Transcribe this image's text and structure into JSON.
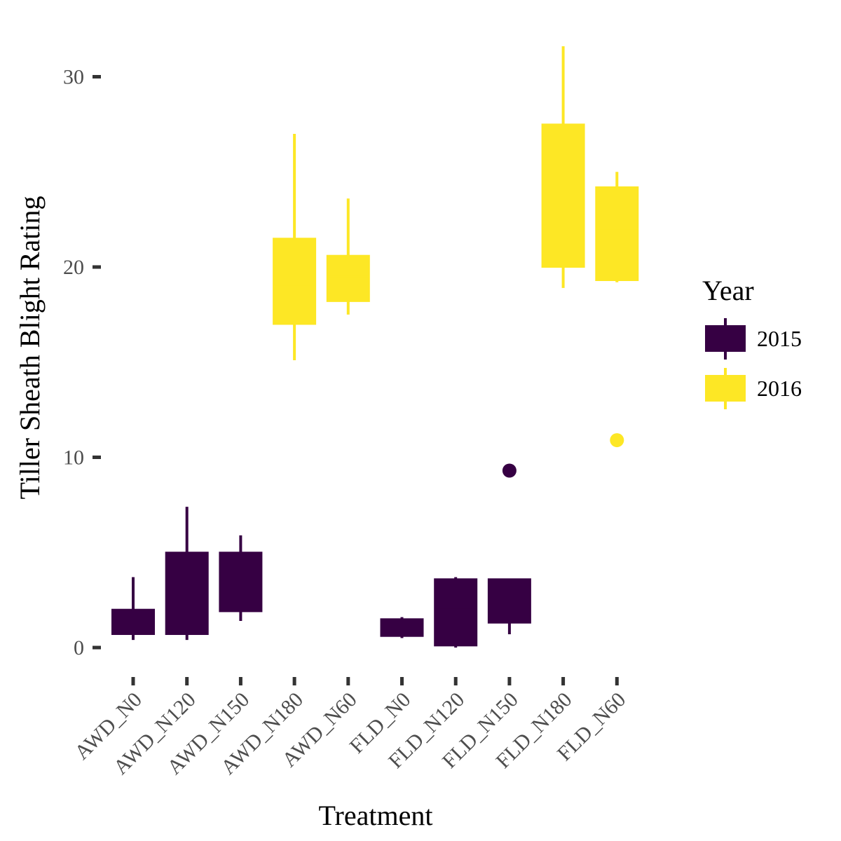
{
  "colors": {
    "2015": "#360043",
    "2016": "#fde725",
    "tick": "#333333"
  },
  "chart_data": {
    "type": "box",
    "xlabel": "Treatment",
    "ylabel": "Tiller Sheath Blight Rating",
    "categories": [
      "AWD_N0",
      "AWD_N120",
      "AWD_N150",
      "AWD_N180",
      "AWD_N60",
      "FLD_N0",
      "FLD_N120",
      "FLD_N150",
      "FLD_N180",
      "FLD_N60"
    ],
    "y_ticks": [
      0,
      10,
      20,
      30
    ],
    "y_tick_labels": [
      "0",
      "10",
      "20",
      "30"
    ],
    "ylim": [
      -1.5,
      32.5
    ],
    "grid": false,
    "legend": {
      "title": "Year",
      "position": "right",
      "entries": [
        "2015",
        "2016"
      ]
    },
    "series": [
      {
        "name": "2015",
        "color": "#360043",
        "boxes": [
          {
            "category": "AWD_N0",
            "lower_whisker": 0.4,
            "q1": 0.7,
            "median": 1.2,
            "q3": 2.0,
            "upper_whisker": 3.7,
            "outliers": []
          },
          {
            "category": "AWD_N120",
            "lower_whisker": 0.4,
            "q1": 0.7,
            "median": 3.0,
            "q3": 5.0,
            "upper_whisker": 7.4,
            "outliers": []
          },
          {
            "category": "AWD_N150",
            "lower_whisker": 1.4,
            "q1": 1.9,
            "median": 4.0,
            "q3": 5.0,
            "upper_whisker": 5.9,
            "outliers": []
          },
          {
            "category": "FLD_N0",
            "lower_whisker": 0.5,
            "q1": 0.6,
            "median": 1.0,
            "q3": 1.5,
            "upper_whisker": 1.6,
            "outliers": []
          },
          {
            "category": "FLD_N120",
            "lower_whisker": 0.0,
            "q1": 0.1,
            "median": 2.0,
            "q3": 3.6,
            "upper_whisker": 3.7,
            "outliers": []
          },
          {
            "category": "FLD_N150",
            "lower_whisker": 0.7,
            "q1": 1.3,
            "median": 3.0,
            "q3": 3.6,
            "upper_whisker": 3.6,
            "outliers": [
              9.3
            ]
          }
        ]
      },
      {
        "name": "2016",
        "color": "#fde725",
        "boxes": [
          {
            "category": "AWD_N180",
            "lower_whisker": 15.1,
            "q1": 17.0,
            "median": 19.0,
            "q3": 21.5,
            "upper_whisker": 27.0,
            "outliers": []
          },
          {
            "category": "AWD_N60",
            "lower_whisker": 17.5,
            "q1": 18.2,
            "median": 19.5,
            "q3": 20.6,
            "upper_whisker": 23.6,
            "outliers": []
          },
          {
            "category": "FLD_N180",
            "lower_whisker": 18.9,
            "q1": 20.0,
            "median": 23.0,
            "q3": 27.5,
            "upper_whisker": 31.6,
            "outliers": []
          },
          {
            "category": "FLD_N60",
            "lower_whisker": 19.2,
            "q1": 19.3,
            "median": 22.0,
            "q3": 24.2,
            "upper_whisker": 25.0,
            "outliers": [
              10.9
            ]
          }
        ]
      }
    ]
  }
}
